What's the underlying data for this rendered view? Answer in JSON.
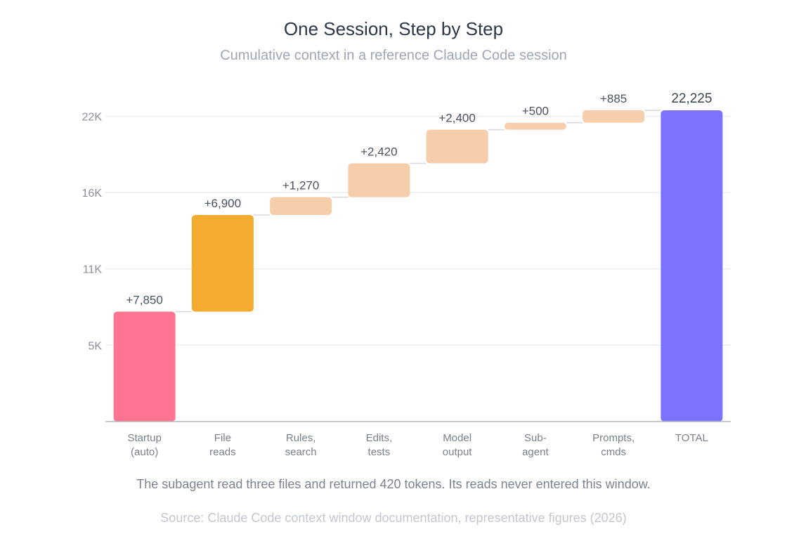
{
  "header": {
    "title": "One Session, Step by Step",
    "subtitle": "Cumulative context in a reference Claude Code session"
  },
  "footer": {
    "note": "The subagent read three files and returned 420 tokens. Its reads never entered this window.",
    "source": "Source: Claude Code context window documentation, representative figures (2026)"
  },
  "chart_data": {
    "type": "bar",
    "subtype": "waterfall",
    "title": "One Session, Step by Step",
    "subtitle": "Cumulative context in a reference Claude Code session",
    "xlabel": "",
    "ylabel": "",
    "ylim": [
      0,
      22225
    ],
    "grid": true,
    "yticks": [
      {
        "value": 5450,
        "label": "5K"
      },
      {
        "value": 10900,
        "label": "11K"
      },
      {
        "value": 16350,
        "label": "16K"
      },
      {
        "value": 21800,
        "label": "22K"
      }
    ],
    "categories": [
      [
        "Startup",
        "(auto)"
      ],
      [
        "File",
        "reads"
      ],
      [
        "Rules,",
        "search"
      ],
      [
        "Edits,",
        "tests"
      ],
      [
        "Model",
        "output"
      ],
      [
        "Sub-",
        "agent"
      ],
      [
        "Prompts,",
        "cmds"
      ],
      [
        "TOTAL"
      ]
    ],
    "values": [
      7850,
      6900,
      1270,
      2420,
      2400,
      500,
      885,
      22225
    ],
    "value_labels": [
      "+7,850",
      "+6,900",
      "+1,270",
      "+2,420",
      "+2,400",
      "+500",
      "+885",
      "22,225"
    ],
    "is_total": [
      false,
      false,
      false,
      false,
      false,
      false,
      false,
      true
    ],
    "colors": [
      "#ff7591",
      "#f5ab2f",
      "#f7ceac",
      "#f7ceac",
      "#f7ceac",
      "#f7ceac",
      "#f7ceac",
      "#7b73ff"
    ],
    "connector_color": "#d6d9de",
    "grid_color": "#eceef1",
    "axis_color": "#b3b8c0"
  }
}
